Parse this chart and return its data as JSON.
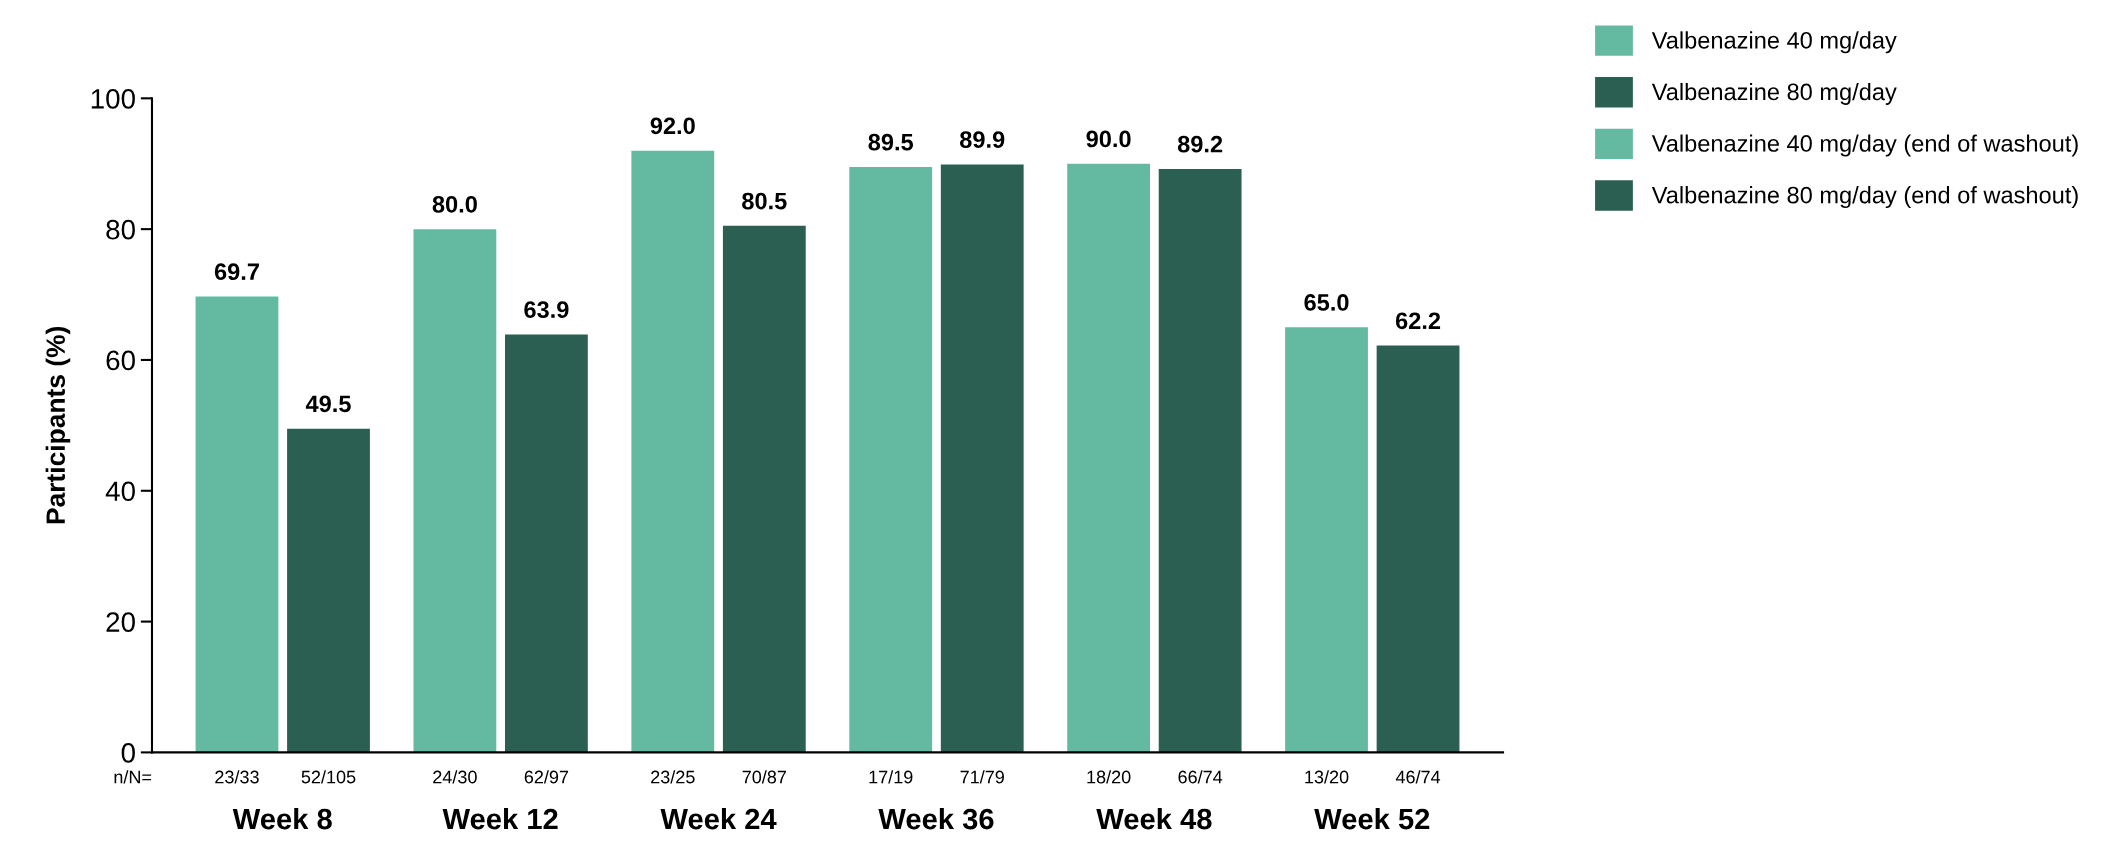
{
  "chart_data": {
    "type": "bar",
    "ylabel": "Participants (%)",
    "categories": [
      "Week 8",
      "Week 12",
      "Week 24",
      "Week 36",
      "Week 48",
      "Week 52"
    ],
    "series": [
      {
        "name": "Valbenazine 40 mg/day",
        "color": "#64b9a1",
        "values": [
          69.7,
          80.0,
          92.0,
          89.5,
          90.0,
          null
        ],
        "value_labels": [
          "69.7",
          "80.0",
          "92.0",
          "89.5",
          "90.0",
          null
        ]
      },
      {
        "name": "Valbenazine 80 mg/day",
        "color": "#2a5f52",
        "values": [
          49.5,
          63.9,
          80.5,
          89.9,
          89.2,
          null
        ],
        "value_labels": [
          "49.5",
          "63.9",
          "80.5",
          "89.9",
          "89.2",
          null
        ]
      },
      {
        "name": "Valbenazine 40 mg/day (end of washout)",
        "color": "#64b9a1",
        "values": [
          null,
          null,
          null,
          null,
          null,
          65.0
        ],
        "value_labels": [
          null,
          null,
          null,
          null,
          null,
          "65.0"
        ]
      },
      {
        "name": "Valbenazine 80 mg/day (end of washout)",
        "color": "#2a5f52",
        "values": [
          null,
          null,
          null,
          null,
          null,
          62.2
        ],
        "value_labels": [
          null,
          null,
          null,
          null,
          null,
          "62.2"
        ]
      }
    ],
    "ylim": [
      0,
      100
    ],
    "yticks": [
      0,
      20,
      40,
      60,
      80,
      100
    ],
    "grid": false,
    "legend": "top right",
    "annotations": [
      "n/N=",
      "23/33",
      "52/105",
      "24/30",
      "62/97",
      "23/25",
      "70/87",
      "17/19",
      "71/79",
      "18/20",
      "66/74",
      "13/20",
      "46/74"
    ]
  }
}
